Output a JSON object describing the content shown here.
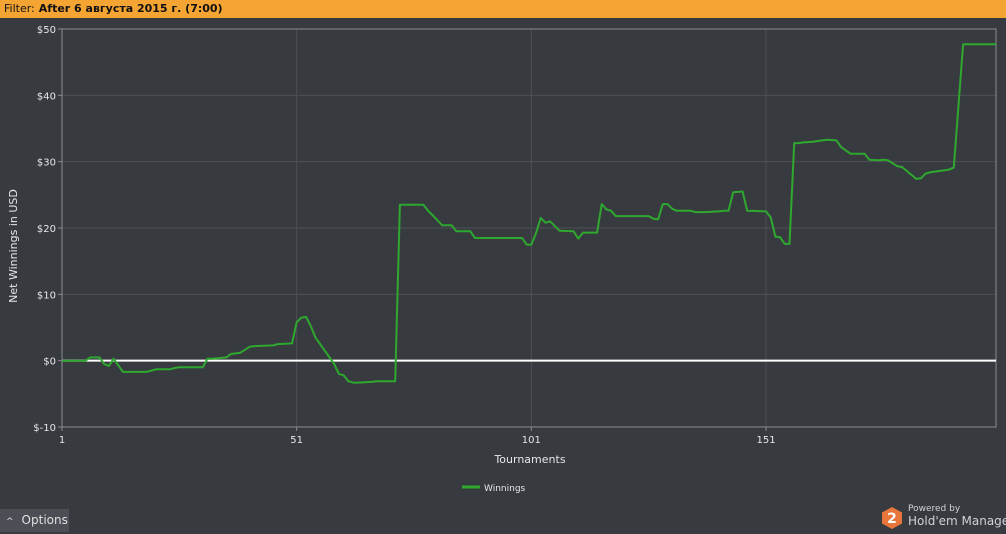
{
  "filter": {
    "label": "Filter:",
    "value": "After 6 августа 2015 г. (7:00)"
  },
  "options": {
    "label": "Options",
    "chevron": "^"
  },
  "branding": {
    "powered": "Powered by",
    "name": "Hold'em Manager",
    "logo_digit": "2",
    "logo_color": "#e8763a"
  },
  "colors": {
    "background": "#373b40",
    "series": "#2ea82e",
    "zero_line": "#ffffff",
    "grid": "#4c5055",
    "filter_bar": "#f4a433"
  },
  "chart_data": {
    "type": "line",
    "title": "",
    "xlabel": "Tournaments",
    "ylabel": "Net Winnings in USD",
    "xlim": [
      1,
      200
    ],
    "ylim": [
      -10,
      50
    ],
    "x_ticks": [
      1,
      51,
      101,
      151
    ],
    "y_ticks": [
      {
        "value": -10,
        "label": "$-10"
      },
      {
        "value": 0,
        "label": "$0"
      },
      {
        "value": 10,
        "label": "$10"
      },
      {
        "value": 20,
        "label": "$20"
      },
      {
        "value": 30,
        "label": "$30"
      },
      {
        "value": 40,
        "label": "$40"
      },
      {
        "value": 50,
        "label": "$50"
      }
    ],
    "grid": true,
    "legend": "bottom-center",
    "zero_line": 0,
    "series": [
      {
        "name": "Winnings",
        "x": [
          1,
          6,
          7,
          9,
          10,
          11,
          12,
          14,
          19,
          20,
          21,
          24,
          25,
          26,
          31,
          32,
          33,
          36,
          37,
          39,
          41,
          42,
          46,
          47,
          50,
          51,
          52,
          53,
          54,
          55,
          57,
          59,
          60,
          61,
          62,
          63,
          64,
          67,
          68,
          72,
          73,
          78,
          79,
          80,
          82,
          84,
          85,
          88,
          89,
          99,
          100,
          101,
          102,
          103,
          104,
          105,
          107,
          110,
          111,
          112,
          115,
          116,
          117,
          118,
          119,
          121,
          126,
          127,
          128,
          129,
          130,
          131,
          132,
          135,
          136,
          138,
          141,
          142,
          143,
          144,
          146,
          147,
          151,
          152,
          153,
          154,
          155,
          156,
          157,
          158,
          159,
          161,
          163,
          164,
          166,
          167,
          169,
          172,
          173,
          175,
          176,
          177,
          179,
          180,
          183,
          184,
          185,
          186,
          190,
          191,
          193,
          200
        ],
        "values": [
          0,
          0,
          0.5,
          0.5,
          -0.5,
          -0.8,
          0.3,
          -1.7,
          -1.7,
          -1.5,
          -1.3,
          -1.3,
          -1.1,
          -1,
          -1,
          0.3,
          0.3,
          0.5,
          1,
          1.2,
          2.1,
          2.2,
          2.3,
          2.5,
          2.6,
          5.8,
          6.5,
          6.6,
          5.2,
          3.5,
          1.5,
          -0.5,
          -2,
          -2.2,
          -3.1,
          -3.3,
          -3.3,
          -3.2,
          -3.1,
          -3.1,
          23.5,
          23.5,
          22.6,
          21.9,
          20.4,
          20.4,
          19.5,
          19.5,
          18.5,
          18.5,
          17.5,
          17.5,
          19.2,
          21.5,
          20.8,
          21,
          19.6,
          19.5,
          18.4,
          19.3,
          19.3,
          23.6,
          22.8,
          22.6,
          21.8,
          21.8,
          21.8,
          21.4,
          21.3,
          23.6,
          23.6,
          22.9,
          22.6,
          22.6,
          22.4,
          22.4,
          22.5,
          22.6,
          22.6,
          25.4,
          25.5,
          22.6,
          22.5,
          21.6,
          18.7,
          18.6,
          17.6,
          17.6,
          32.8,
          32.8,
          32.9,
          33,
          33.2,
          33.3,
          33.2,
          32.2,
          31.2,
          31.2,
          30.3,
          30.2,
          30.3,
          30.2,
          29.3,
          29.2,
          27.4,
          27.5,
          28.2,
          28.4,
          28.8,
          29.1,
          47.7,
          47.7
        ]
      }
    ]
  }
}
